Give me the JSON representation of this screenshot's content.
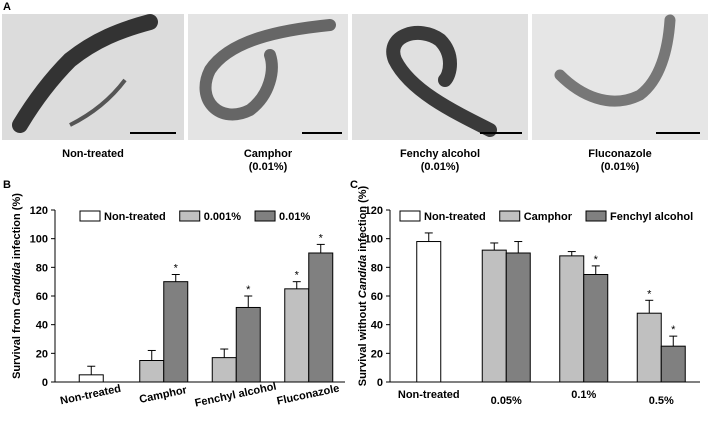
{
  "panel_a": {
    "label": "A",
    "captions": [
      [
        "Non-treated"
      ],
      [
        "Camphor",
        "(0.01%)"
      ],
      [
        "Fenchy alcohol",
        "(0.01%)"
      ],
      [
        "Fluconazole",
        "(0.01%)"
      ]
    ]
  },
  "chart_data": [
    {
      "type": "bar",
      "panel_label": "B",
      "ylabel": [
        "Survival from ",
        "Candida",
        " infection (%)"
      ],
      "ylabel_italic_part": 1,
      "categories": [
        "Non-treated",
        "Camphor",
        "Fenchyl alcohol",
        "Fluconazole"
      ],
      "series": [
        {
          "name": "Non-treated",
          "color": "#ffffff",
          "values": [
            5,
            null,
            null,
            null
          ],
          "errors": [
            6,
            null,
            null,
            null
          ],
          "significant": [
            false,
            false,
            false,
            false
          ]
        },
        {
          "name": "0.001%",
          "color": "#c0c0c0",
          "values": [
            null,
            15,
            17,
            65
          ],
          "errors": [
            null,
            7,
            6,
            5
          ],
          "significant": [
            false,
            false,
            false,
            true
          ]
        },
        {
          "name": "0.01%",
          "color": "#808080",
          "values": [
            null,
            70,
            52,
            90
          ],
          "errors": [
            null,
            5,
            8,
            6
          ],
          "significant": [
            false,
            true,
            true,
            true
          ]
        }
      ],
      "significance_marker": "*",
      "ylim": [
        0,
        120
      ],
      "yticks": [
        0,
        20,
        40,
        60,
        80,
        100,
        120
      ],
      "grid": false,
      "legend": "top",
      "xtick_rotation": -12
    },
    {
      "type": "bar",
      "panel_label": "C",
      "ylabel": [
        "Survival without ",
        "Candida",
        " infection (%)"
      ],
      "ylabel_italic_part": 1,
      "categories": [
        "Non-treated",
        "0.05%",
        "0.1%",
        "0.5%"
      ],
      "series": [
        {
          "name": "Non-treated",
          "color": "#ffffff",
          "values": [
            98,
            null,
            null,
            null
          ],
          "errors": [
            6,
            null,
            null,
            null
          ],
          "significant": [
            false,
            false,
            false,
            false
          ]
        },
        {
          "name": "Camphor",
          "color": "#c0c0c0",
          "values": [
            null,
            92,
            88,
            48
          ],
          "errors": [
            null,
            5,
            3,
            9
          ],
          "significant": [
            false,
            false,
            false,
            true
          ]
        },
        {
          "name": "Fenchyl alcohol",
          "color": "#808080",
          "values": [
            null,
            90,
            75,
            25
          ],
          "errors": [
            null,
            8,
            6,
            7
          ],
          "significant": [
            false,
            false,
            true,
            true
          ]
        }
      ],
      "significance_marker": "*",
      "ylim": [
        0,
        120
      ],
      "yticks": [
        0,
        20,
        40,
        60,
        80,
        100,
        120
      ],
      "grid": false,
      "legend": "top",
      "xtick_rotation": 0
    }
  ]
}
